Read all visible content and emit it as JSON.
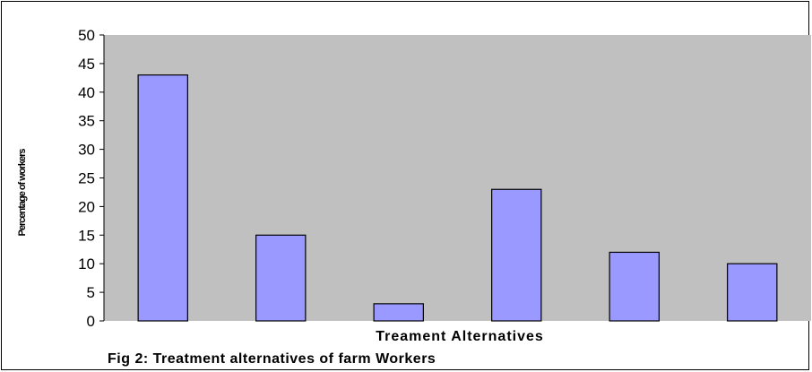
{
  "chart_data": {
    "type": "bar",
    "categories": [
      "",
      "",
      "",
      "",
      "",
      ""
    ],
    "values": [
      43,
      15,
      3,
      23,
      12,
      10
    ],
    "title": "Fig 2: Treatment alternatives of farm Workers",
    "xlabel": "Treament Alternatives",
    "ylabel": "Percentage of workers",
    "ylim": [
      0,
      50
    ],
    "yticks": [
      "0",
      "5",
      "10",
      "15",
      "20",
      "25",
      "30",
      "35",
      "40",
      "45",
      "50"
    ],
    "grid": false,
    "legend": "none",
    "colors": {
      "bar_fill": "#9999ff",
      "bar_stroke": "#000000",
      "plot_background": "#c0c0c0"
    }
  }
}
